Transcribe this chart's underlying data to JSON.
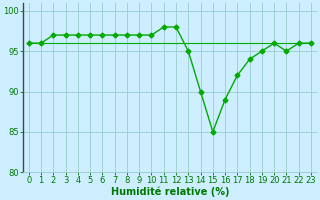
{
  "line1": {
    "x": [
      0,
      1,
      2,
      3,
      4,
      5,
      6,
      7,
      8,
      9,
      10,
      11,
      12,
      13,
      14,
      15,
      16,
      17,
      18,
      19,
      20,
      21,
      22,
      23
    ],
    "y": [
      96,
      96,
      97,
      97,
      97,
      97,
      97,
      97,
      97,
      97,
      97,
      98,
      98,
      95,
      90,
      85,
      89,
      92,
      94,
      95,
      96,
      95,
      96,
      96
    ],
    "color": "#00aa00",
    "markersize": 2.5,
    "linewidth": 1.0
  },
  "line2": {
    "x": [
      0,
      1,
      2,
      3,
      4,
      5,
      6,
      7,
      8,
      9,
      10,
      11,
      12,
      13,
      14,
      15,
      16,
      17,
      18,
      19,
      20,
      21,
      22,
      23
    ],
    "y": [
      96,
      96,
      96,
      96,
      96,
      96,
      96,
      96,
      96,
      96,
      96,
      96,
      96,
      96,
      96,
      96,
      96,
      96,
      96,
      96,
      96,
      96,
      96,
      96
    ],
    "color": "#00aa00",
    "linewidth": 0.8
  },
  "background_color": "#cceeff",
  "grid_color": "#99cccc",
  "spine_color": "#555555",
  "xlabel": "Humidité relative (%)",
  "xlabel_color": "#007700",
  "xlabel_fontsize": 7,
  "tick_color": "#007700",
  "tick_fontsize": 6,
  "ylim": [
    80,
    101
  ],
  "xlim": [
    -0.5,
    23.5
  ],
  "yticks": [
    80,
    85,
    90,
    95,
    100
  ],
  "xticks": [
    0,
    1,
    2,
    3,
    4,
    5,
    6,
    7,
    8,
    9,
    10,
    11,
    12,
    13,
    14,
    15,
    16,
    17,
    18,
    19,
    20,
    21,
    22,
    23
  ]
}
